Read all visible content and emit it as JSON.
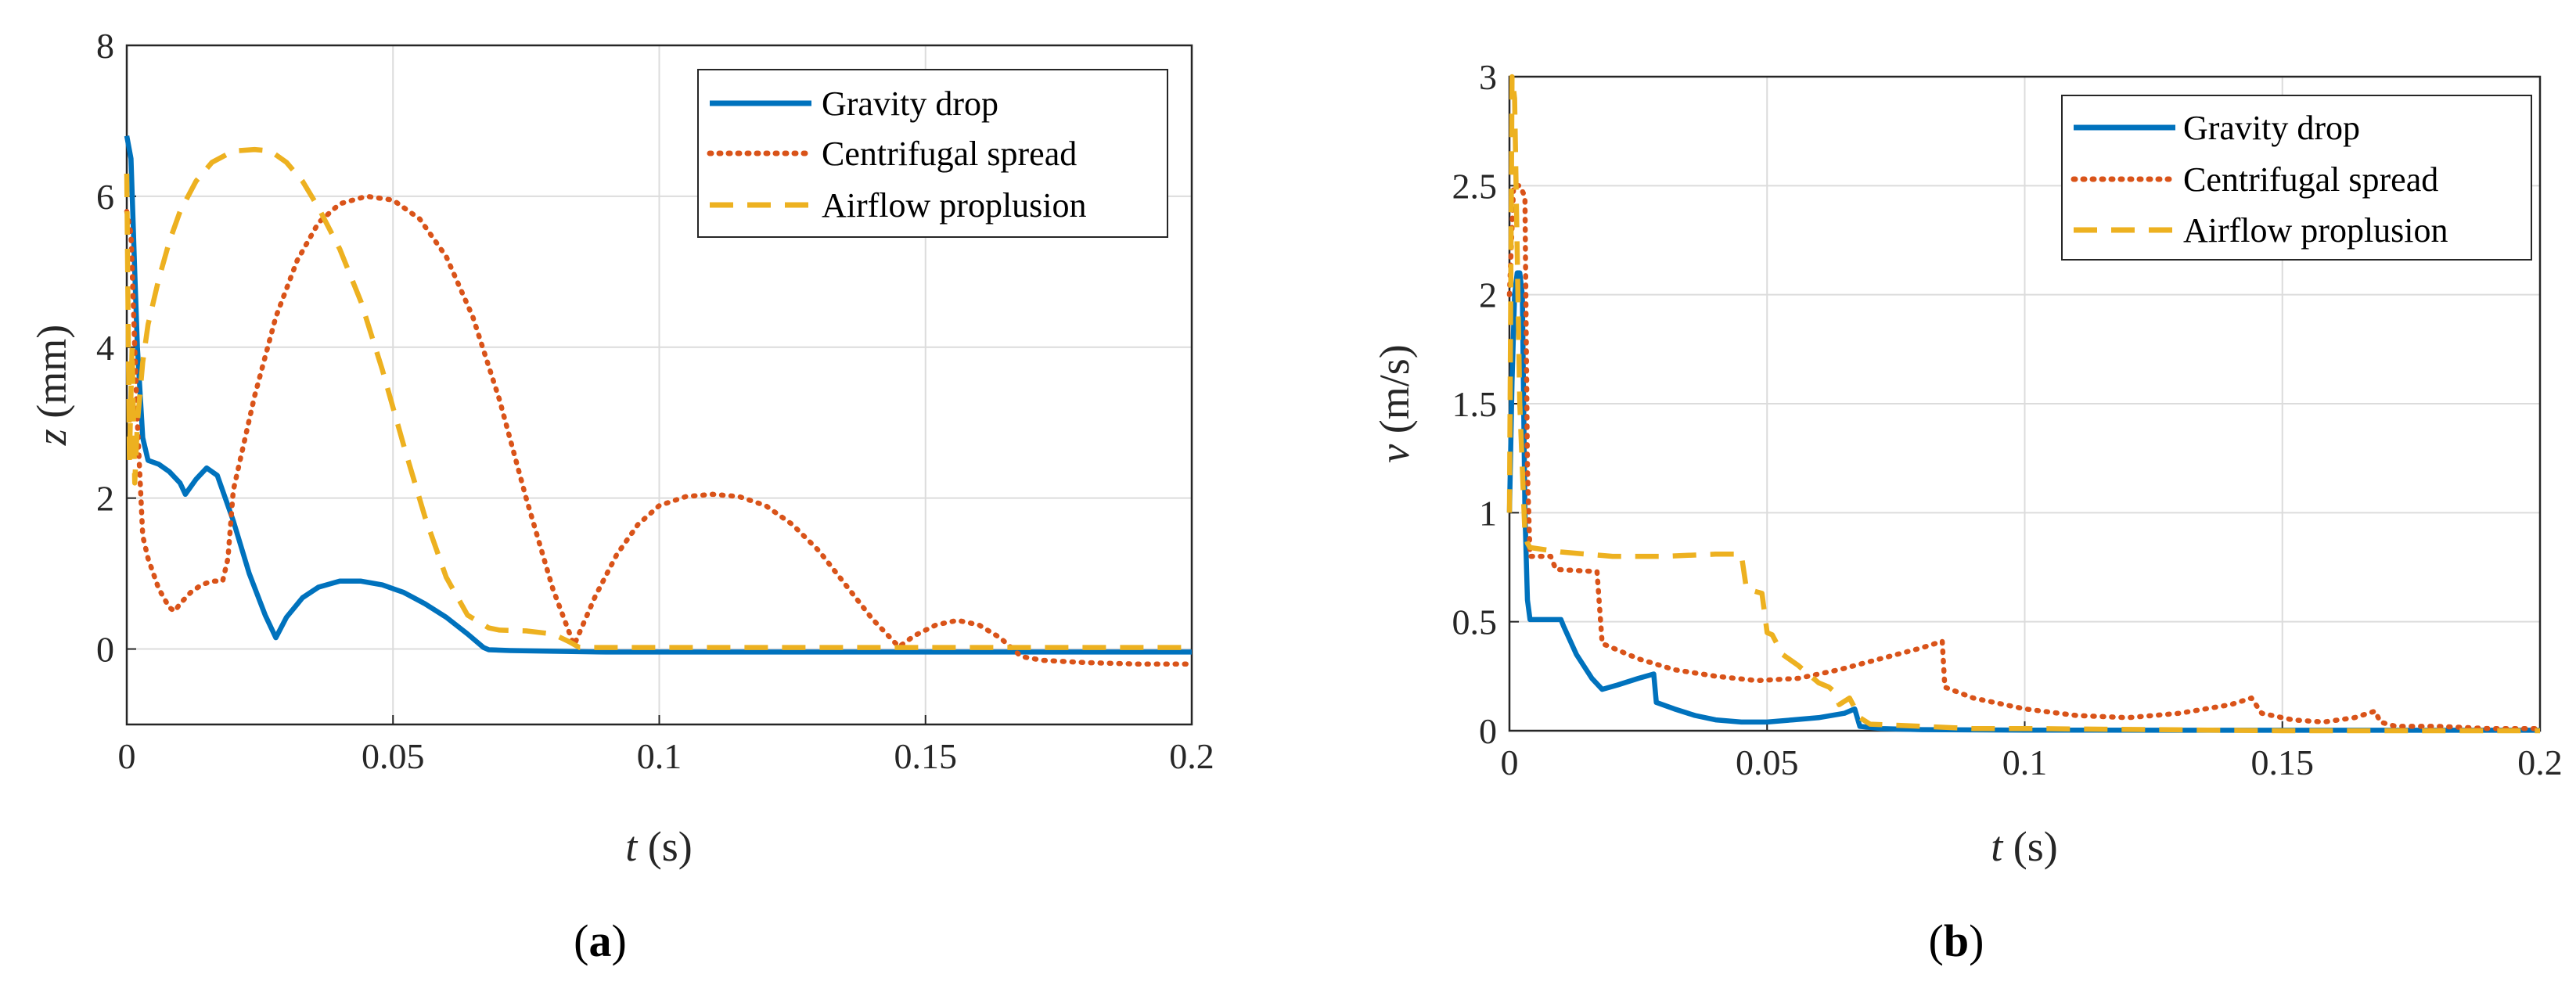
{
  "colors": {
    "gravity": "#0072BD",
    "centrifugal": "#D95319",
    "airflow": "#EDB120",
    "grid": "#dcdcdc",
    "axis": "#262626"
  },
  "chart_data": [
    {
      "type": "line",
      "caption": "a",
      "xlabel_var": "t",
      "xlabel_unit": " (s)",
      "ylabel_var": "z",
      "ylabel_unit": " (mm)",
      "xlim": [
        0,
        0.2
      ],
      "ylim": [
        -1,
        8
      ],
      "xticks": [
        0,
        0.05,
        0.1,
        0.15,
        0.2
      ],
      "xtick_labels": [
        "0",
        "0.05",
        "0.1",
        "0.15",
        "0.2"
      ],
      "yticks": [
        0,
        2,
        4,
        6,
        8
      ],
      "ytick_labels": [
        "0",
        "2",
        "4",
        "6",
        "8"
      ],
      "grid": true,
      "legend_position": "top-right",
      "series": [
        {
          "name": "Gravity drop",
          "style": "solid",
          "color_key": "gravity",
          "x": [
            0,
            0.0008,
            0.0015,
            0.002,
            0.003,
            0.004,
            0.006,
            0.008,
            0.01,
            0.011,
            0.013,
            0.015,
            0.017,
            0.02,
            0.023,
            0.026,
            0.028,
            0.03,
            0.033,
            0.036,
            0.04,
            0.044,
            0.048,
            0.052,
            0.056,
            0.06,
            0.064,
            0.067,
            0.068,
            0.072,
            0.08,
            0.09,
            0.1,
            0.12,
            0.15,
            0.2
          ],
          "y": [
            6.8,
            6.5,
            5.0,
            4.0,
            2.8,
            2.5,
            2.45,
            2.35,
            2.2,
            2.05,
            2.25,
            2.4,
            2.3,
            1.7,
            1.0,
            0.45,
            0.15,
            0.42,
            0.68,
            0.82,
            0.9,
            0.9,
            0.85,
            0.75,
            0.6,
            0.42,
            0.2,
            0.02,
            -0.01,
            -0.02,
            -0.03,
            -0.04,
            -0.04,
            -0.04,
            -0.04,
            -0.04
          ]
        },
        {
          "name": "Centrifugal spread",
          "style": "dotted",
          "color_key": "centrifugal",
          "x": [
            0,
            0.0008,
            0.0015,
            0.002,
            0.003,
            0.004,
            0.006,
            0.008,
            0.009,
            0.01,
            0.012,
            0.014,
            0.016,
            0.018,
            0.019,
            0.02,
            0.024,
            0.028,
            0.032,
            0.036,
            0.04,
            0.045,
            0.05,
            0.055,
            0.06,
            0.065,
            0.07,
            0.075,
            0.08,
            0.084,
            0.088,
            0.092,
            0.096,
            0.1,
            0.105,
            0.11,
            0.115,
            0.12,
            0.125,
            0.13,
            0.135,
            0.14,
            0.145,
            0.148,
            0.152,
            0.156,
            0.16,
            0.164,
            0.168,
            0.172,
            0.18,
            0.19,
            0.2
          ],
          "y": [
            5.8,
            5.5,
            4.0,
            3.0,
            1.5,
            1.2,
            0.8,
            0.55,
            0.5,
            0.6,
            0.75,
            0.85,
            0.9,
            0.9,
            1.2,
            2.1,
            3.35,
            4.4,
            5.15,
            5.65,
            5.9,
            6.0,
            5.95,
            5.7,
            5.2,
            4.4,
            3.3,
            2.0,
            0.8,
            0.05,
            0.7,
            1.25,
            1.65,
            1.9,
            2.02,
            2.05,
            2.02,
            1.9,
            1.65,
            1.3,
            0.85,
            0.4,
            0.03,
            0.18,
            0.32,
            0.38,
            0.32,
            0.15,
            -0.1,
            -0.15,
            -0.18,
            -0.2,
            -0.2
          ]
        },
        {
          "name": "Airflow proplusion",
          "style": "dashed",
          "color_key": "airflow",
          "x": [
            0,
            0.0005,
            0.001,
            0.0015,
            0.002,
            0.003,
            0.004,
            0.006,
            0.008,
            0.01,
            0.013,
            0.016,
            0.02,
            0.024,
            0.027,
            0.03,
            0.033,
            0.036,
            0.04,
            0.044,
            0.048,
            0.052,
            0.056,
            0.06,
            0.064,
            0.068,
            0.07,
            0.075,
            0.08,
            0.083,
            0.085,
            0.1,
            0.15,
            0.2
          ],
          "y": [
            6.3,
            2.5,
            4.0,
            2.2,
            3.0,
            3.8,
            4.3,
            4.9,
            5.4,
            5.8,
            6.2,
            6.45,
            6.6,
            6.62,
            6.6,
            6.45,
            6.2,
            5.85,
            5.3,
            4.6,
            3.7,
            2.7,
            1.75,
            0.95,
            0.45,
            0.28,
            0.25,
            0.24,
            0.2,
            0.1,
            0.02,
            0.02,
            0.02,
            0.02
          ]
        }
      ]
    },
    {
      "type": "line",
      "caption": "b",
      "xlabel_var": "t",
      "xlabel_unit": " (s)",
      "ylabel_var": "v",
      "ylabel_unit": " (m/s)",
      "xlim": [
        0,
        0.2
      ],
      "ylim": [
        0,
        3
      ],
      "xticks": [
        0,
        0.05,
        0.1,
        0.15,
        0.2
      ],
      "xtick_labels": [
        "0",
        "0.05",
        "0.1",
        "0.15",
        "0.2"
      ],
      "yticks": [
        0,
        0.5,
        1,
        1.5,
        2,
        2.5,
        3
      ],
      "ytick_labels": [
        "0",
        "0.5",
        "1",
        "1.5",
        "2",
        "2.5",
        "3"
      ],
      "grid": true,
      "legend_position": "top-right",
      "series": [
        {
          "name": "Gravity drop",
          "style": "solid",
          "color_key": "gravity",
          "x": [
            0,
            0.0005,
            0.001,
            0.0015,
            0.002,
            0.0025,
            0.003,
            0.0035,
            0.004,
            0.01,
            0.0105,
            0.013,
            0.016,
            0.018,
            0.021,
            0.025,
            0.028,
            0.0285,
            0.032,
            0.036,
            0.04,
            0.045,
            0.05,
            0.055,
            0.06,
            0.065,
            0.067,
            0.068,
            0.072,
            0.08,
            0.1,
            0.15,
            0.2
          ],
          "y": [
            1.0,
            1.6,
            2.0,
            2.1,
            2.1,
            2.0,
            1.0,
            0.6,
            0.51,
            0.51,
            0.48,
            0.35,
            0.24,
            0.19,
            0.21,
            0.24,
            0.26,
            0.13,
            0.1,
            0.07,
            0.05,
            0.04,
            0.04,
            0.05,
            0.06,
            0.08,
            0.1,
            0.02,
            0.01,
            0.005,
            0.003,
            0.002,
            0.002
          ]
        },
        {
          "name": "Centrifugal spread",
          "style": "dotted",
          "color_key": "centrifugal",
          "x": [
            0,
            0.0008,
            0.0015,
            0.002,
            0.003,
            0.0035,
            0.004,
            0.008,
            0.009,
            0.017,
            0.018,
            0.025,
            0.032,
            0.04,
            0.048,
            0.056,
            0.064,
            0.072,
            0.08,
            0.084,
            0.0845,
            0.09,
            0.1,
            0.11,
            0.12,
            0.13,
            0.14,
            0.144,
            0.146,
            0.152,
            0.158,
            0.164,
            0.168,
            0.169,
            0.172,
            0.18,
            0.19,
            0.2
          ],
          "y": [
            2.0,
            2.5,
            2.5,
            2.5,
            2.45,
            1.2,
            0.8,
            0.8,
            0.74,
            0.73,
            0.4,
            0.33,
            0.28,
            0.25,
            0.23,
            0.24,
            0.28,
            0.33,
            0.38,
            0.41,
            0.2,
            0.15,
            0.1,
            0.07,
            0.06,
            0.08,
            0.12,
            0.15,
            0.08,
            0.05,
            0.04,
            0.06,
            0.09,
            0.04,
            0.02,
            0.02,
            0.01,
            0.01
          ]
        },
        {
          "name": "Airflow proplusion",
          "style": "dashed",
          "color_key": "airflow",
          "x": [
            0,
            0.0005,
            0.001,
            0.0015,
            0.002,
            0.0025,
            0.003,
            0.0035,
            0.004,
            0.01,
            0.02,
            0.03,
            0.04,
            0.045,
            0.046,
            0.049,
            0.05,
            0.051,
            0.053,
            0.056,
            0.06,
            0.062,
            0.063,
            0.064,
            0.066,
            0.068,
            0.07,
            0.08,
            0.09,
            0.1,
            0.15,
            0.2
          ],
          "y": [
            1.0,
            3.0,
            2.9,
            2.2,
            1.5,
            1.2,
            0.9,
            0.86,
            0.84,
            0.82,
            0.8,
            0.8,
            0.81,
            0.81,
            0.65,
            0.63,
            0.45,
            0.44,
            0.35,
            0.3,
            0.22,
            0.2,
            0.18,
            0.12,
            0.15,
            0.06,
            0.03,
            0.02,
            0.01,
            0.01,
            0.0,
            0.0
          ]
        }
      ]
    }
  ]
}
